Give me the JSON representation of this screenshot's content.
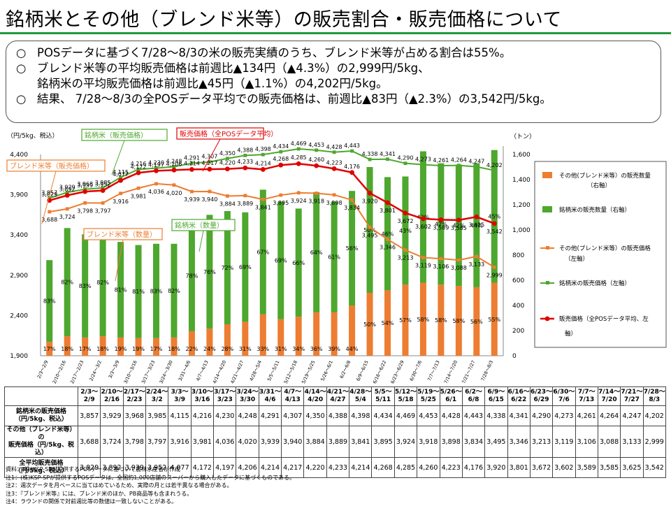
{
  "title": "銘柄米とその他（ブレンド米等）の販売割合・販売価格について",
  "summary": {
    "marker": "○",
    "lines": [
      "POSデータに基づく7/28～8/3の米の販売実績のうち、ブレンド米等が占める割合は55%。",
      "ブレンド米等の平均販売価格は前週比▲134円（▲4.3%）の2,999円/5kg、",
      "銘柄米の平均販売価格は前週比▲45円（▲1.1%）の4,202円/5kg。",
      "結果、 7/28～8/3の全POSデータ平均での販売価格は、前週比▲83円（▲2.3%）の3,542円/5kg。"
    ]
  },
  "chart_data": {
    "type": "bar",
    "left_axis_label": "（円/5kg、税込）",
    "right_axis_label": "（トン）",
    "left_ylim": [
      1900,
      4400
    ],
    "left_ticks": [
      "1,900",
      "2,400",
      "2,900",
      "3,400",
      "3,900",
      "4,400"
    ],
    "right_ylim": [
      0,
      1600
    ],
    "right_ticks": [
      "0",
      "200",
      "400",
      "600",
      "800",
      "1,000",
      "1,200",
      "1,400",
      "1,600"
    ],
    "categories": [
      "2/3～2/9",
      "2/10～2/16",
      "2/17～2/23",
      "2/24～3/2",
      "3/3～3/9",
      "3/10～3/16",
      "3/17～3/23",
      "3/24～3/30",
      "3/31～4/6",
      "4/7～4/13",
      "4/14～4/20",
      "4/21～4/27",
      "4/28～5/4",
      "5/5～5/11",
      "5/12～5/18",
      "5/19～5/25",
      "5/26～6/1",
      "6/2～6/8",
      "6/9～6/15",
      "6/16～6/22",
      "6/23～6/29",
      "6/30～7/6",
      "7/7～7/13",
      "7/14～7/20",
      "7/21～7/27",
      "7/28～8/3"
    ],
    "table_headers": [
      "2/3～\n2/9",
      "2/10～\n2/16",
      "2/17～\n2/23",
      "2/24～\n3/2",
      "3/3～\n3/9",
      "3/10～\n3/16",
      "3/17～\n3/23",
      "3/24～\n3/30",
      "3/31～\n4/6",
      "4/7～\n4/13",
      "4/14～\n4/20",
      "4/21～\n4/27",
      "4/28～\n5/4",
      "5/5～\n5/11",
      "5/12～\n5/18",
      "5/19～\n5/25",
      "5/26～\n6/1",
      "6/2～\n6/8",
      "6/9～\n6/15",
      "6/16～\n6/22",
      "6/23～\n6/29",
      "6/30～\n7/6",
      "7/7～\n7/13",
      "7/14～\n7/20",
      "7/21～\n7/27",
      "7/28～\n8/3"
    ],
    "series": [
      {
        "name": "その他(ブレンド米等)の販売数量（右軸）",
        "axis": "right",
        "type": "bar",
        "color": "#ed7d31",
        "values": [
          110,
          155,
          145,
          155,
          145,
          140,
          140,
          145,
          195,
          215,
          250,
          270,
          330,
          290,
          310,
          345,
          345,
          400,
          500,
          520,
          565,
          580,
          565,
          555,
          545,
          580
        ]
      },
      {
        "name": "銘柄米の販売数量（右軸）",
        "axis": "right",
        "type": "bar",
        "color": "#4ea72e",
        "values": [
          650,
          860,
          820,
          855,
          760,
          740,
          750,
          745,
          880,
          905,
          900,
          870,
          990,
          935,
          860,
          955,
          880,
          910,
          1000,
          900,
          860,
          1045,
          965,
          965,
          985,
          1055
        ]
      },
      {
        "name": "その他(ブレンド米等)の販売価格（左軸）",
        "axis": "left",
        "type": "line",
        "color": "#ed7d31",
        "values": [
          3688,
          3724,
          3798,
          3797,
          3916,
          3981,
          4036,
          4020,
          3939,
          3940,
          3884,
          3889,
          3841,
          3895,
          3924,
          3918,
          3898,
          3834,
          3495,
          3346,
          3213,
          3119,
          3106,
          3088,
          3133,
          2999
        ],
        "labels": [
          "3,688",
          "3,724",
          "3,798",
          "3,797",
          "3,916",
          "3,981",
          "4,036",
          "4,020",
          "3,939",
          "3,940",
          "3,884",
          "3,889",
          "3,841",
          "3,895",
          "3,924",
          "3,918",
          "3,898",
          "3,834",
          "3,495",
          "3,346",
          "3,213",
          "3,119",
          "3,106",
          "3,088",
          "3,133",
          "2,999"
        ]
      },
      {
        "name": "銘柄米の販売価格（左軸）",
        "axis": "left",
        "type": "line",
        "color": "#4ea72e",
        "values": [
          3857,
          3929,
          3968,
          3985,
          4115,
          4216,
          4230,
          4248,
          4291,
          4307,
          4350,
          4388,
          4398,
          4434,
          4469,
          4453,
          4428,
          4443,
          4338,
          4341,
          4290,
          4273,
          4261,
          4264,
          4247,
          4202
        ],
        "labels": [
          "3,857",
          "3,929",
          "3,968",
          "3,985",
          "4,115",
          "4,216",
          "4,230",
          "4,248",
          "4,291",
          "4,307",
          "4,350",
          "4,388",
          "4,398",
          "4,434",
          "4,469",
          "4,453",
          "4,428",
          "4,443",
          "4,338",
          "4,341",
          "4,290",
          "4,273",
          "4,261",
          "4,264",
          "4,247",
          "4,202"
        ]
      },
      {
        "name": "販売価格（全POSデータ平均、左軸）",
        "axis": "left",
        "type": "line",
        "color": "#e00000",
        "values": [
          3829,
          3892,
          3939,
          3952,
          4077,
          4172,
          4197,
          4206,
          4214,
          4217,
          4220,
          4233,
          4214,
          4268,
          4285,
          4260,
          4223,
          4176,
          3920,
          3801,
          3672,
          3602,
          3589,
          3585,
          3625,
          3542
        ],
        "labels": [
          "3,829",
          "3,892",
          "3,939",
          "3,952",
          "4,077",
          "4,172",
          "4,197",
          "4,206",
          "4,214",
          "4,217",
          "4,220",
          "4,233",
          "4,214",
          "4,268",
          "4,285",
          "4,260",
          "4,223",
          "4,176",
          "3,920",
          "3,801",
          "3,672",
          "3,602",
          "3,589",
          "3,585",
          "3,625",
          "3,542"
        ]
      }
    ],
    "blend_share_labels": [
      "17%",
      "18%",
      "17%",
      "18%",
      "19%",
      "19%",
      "17%",
      "18%",
      "22%",
      "24%",
      "28%",
      "31%",
      "33%",
      "31%",
      "34%",
      "36%",
      "39%",
      "44%",
      "50%",
      "54%",
      "57%",
      "58%",
      "58%",
      "58%",
      "56%",
      "55%"
    ],
    "brand_share_labels": [
      "83%",
      "82%",
      "83%",
      "82%",
      "81%",
      "81%",
      "83%",
      "82%",
      "78%",
      "76%",
      "72%",
      "69%",
      "67%",
      "69%",
      "66%",
      "64%",
      "61%",
      "56%",
      "50%",
      "46%",
      "43%",
      "42%",
      "42%",
      "42%",
      "44%",
      "45%"
    ],
    "callouts": {
      "brand_price": "銘柄米（販売価格）",
      "total_price": "販売価格（全POSデータ平均）",
      "blend_price": "ブレンド米等（販売価格）",
      "blend_qty": "ブレンド米等（数量）",
      "brand_qty": "銘柄米（数量）"
    },
    "legend": {
      "blend_qty_1": "その他(ブレンド米等）の販売数量",
      "blend_qty_2": "（右軸）",
      "brand_qty": "銘柄米の販売数量（右軸）",
      "blend_price_1": "その他(ブレンド米等）の販売価格",
      "blend_price_2": "（左軸）",
      "brand_price": "銘柄米の販売価格（左軸）",
      "total_price_1": "販売価格（全POSデータ平均、左",
      "total_price_2": "軸）"
    }
  },
  "table": {
    "rows": [
      {
        "label": "銘柄米の販売価格\n（円/5kg、税込）",
        "series_index": 3
      },
      {
        "label": "その他（ブレンド米等）の\n販売価格（円/5kg、税込）",
        "series_index": 2
      },
      {
        "label": "全平均販売価格\n（円/5kg、税込）",
        "series_index": 4
      }
    ]
  },
  "notes": [
    "資料：(株)KSP-SPが提供するPOSデータに基づいて農林水産省が作成",
    "注1：(株)KSP-SPが提供するPOSデータは、全国約1,000店舗のスーパーから購入したデータに基づくものである。",
    "注2：週次データを月ベースに当てはめているため、実際の月とは若干異なる場合がある。",
    "注3：『ブレンド米等』には、ブレンド米のほか、PB商品等も含まれうる。",
    "注4：ラウンドの関係で対前週比等の数値は一致しないことがある。"
  ],
  "colors": {
    "accent_green": "#1e9b3c",
    "orange": "#ed7d31",
    "green": "#4ea72e",
    "red": "#e00000"
  }
}
